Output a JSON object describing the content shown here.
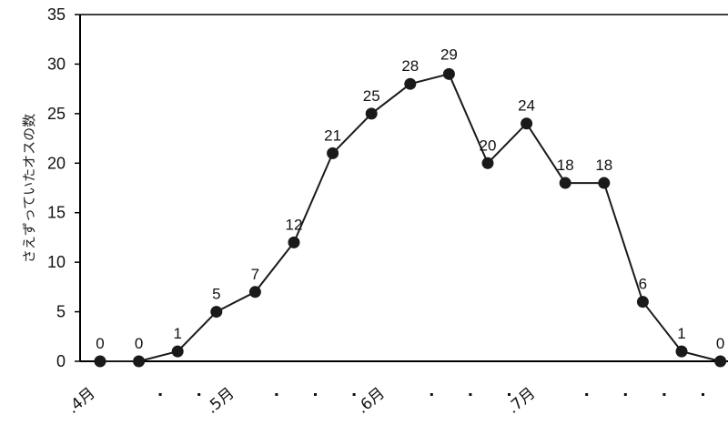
{
  "chart_data": {
    "type": "line",
    "ylabel": "さえずっていたオスの数",
    "ylim": [
      0,
      35
    ],
    "yticks": [
      "0",
      "5",
      "10",
      "15",
      "20",
      "25",
      "30",
      "35"
    ],
    "x_tick_labels": [
      ".4月",
      ".5月",
      ".6月",
      ".7月"
    ],
    "values": [
      0,
      0,
      1,
      5,
      7,
      12,
      21,
      25,
      28,
      29,
      20,
      24,
      18,
      18,
      6,
      1,
      0
    ],
    "data_labels": [
      "0",
      "0",
      "1",
      "5",
      "7",
      "12",
      "21",
      "25",
      "28",
      "29",
      "20",
      "24",
      "18",
      "18",
      "6",
      "1",
      "0"
    ],
    "grid": false,
    "legend": "none",
    "colors": {
      "line": "#1a1a1a",
      "marker": "#1a1a1a",
      "axis": "#000000"
    }
  }
}
